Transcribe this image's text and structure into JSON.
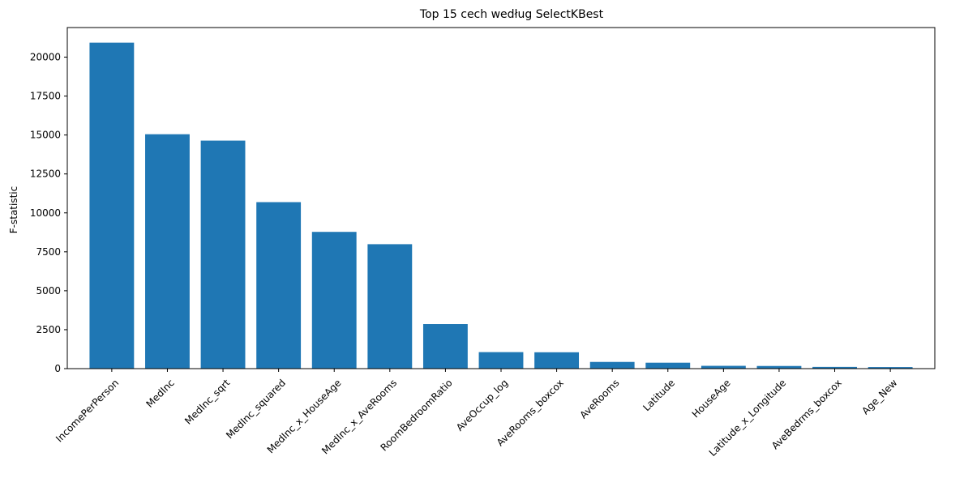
{
  "chart_data": {
    "type": "bar",
    "title": "Top 15 cech według SelectKBest",
    "xlabel": "",
    "ylabel": "F-statistic",
    "ylim": [
      0,
      21900
    ],
    "yticks": [
      0,
      2500,
      5000,
      7500,
      10000,
      12500,
      15000,
      17500,
      20000
    ],
    "grid": false,
    "bar_color": "#1f77b4",
    "categories": [
      "IncomePerPerson",
      "MedInc",
      "MedInc_sqrt",
      "MedInc_squared",
      "MedInc_x_HouseAge",
      "MedInc_x_AveRooms",
      "RoomBedroomRatio",
      "AveOccup_log",
      "AveRooms_boxcox",
      "AveRooms",
      "Latitude",
      "HouseAge",
      "Latitude_x_Longitude",
      "AveBedrms_boxcox",
      "Age_New"
    ],
    "values": [
      20930,
      15050,
      14640,
      10690,
      8780,
      7990,
      2860,
      1060,
      1050,
      430,
      380,
      180,
      170,
      110,
      100
    ]
  }
}
